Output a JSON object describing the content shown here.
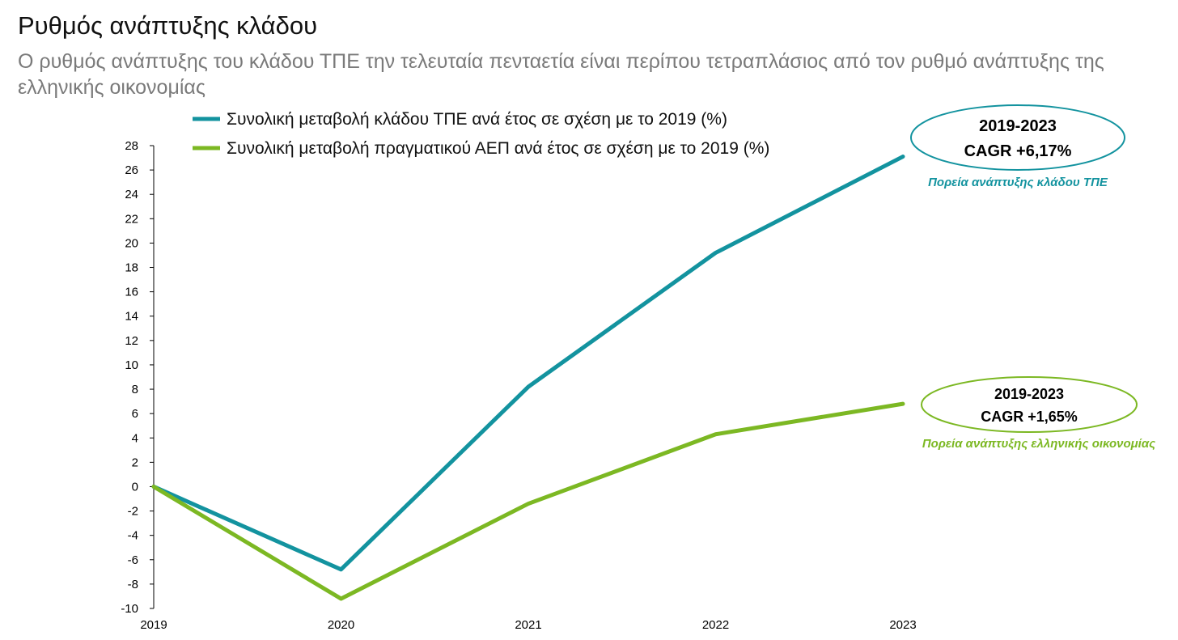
{
  "title": "Ρυθμός ανάπτυξης κλάδου",
  "subtitle": "Ο ρυθμός ανάπτυξης του κλάδου ΤΠΕ την τελευταία πενταετία είναι περίπου τετραπλάσιος από τον ρυθμό ανάπτυξης της ελληνικής οικονομίας",
  "colors": {
    "tpe": "#13939f",
    "gdp": "#7cb823",
    "axis": "#000000"
  },
  "chart_data": {
    "type": "line",
    "x": [
      "2019",
      "2020",
      "2021",
      "2022",
      "2023"
    ],
    "ylim": [
      -10,
      28
    ],
    "yticks": [
      28,
      26,
      24,
      22,
      20,
      18,
      16,
      14,
      12,
      10,
      8,
      6,
      4,
      2,
      0,
      -2,
      -4,
      -6,
      -8,
      -10
    ],
    "grid": false,
    "legend_position": "top",
    "series": [
      {
        "name": "Συνολική μεταβολή κλάδου ΤΠΕ ανά έτος σε σχέση με το 2019 (%)",
        "values": [
          0,
          -6.8,
          8.2,
          19.2,
          27.1
        ]
      },
      {
        "name": "Συνολική μεταβολή πραγματικού ΑΕΠ ανά έτος σε σχέση με το 2019 (%)",
        "values": [
          0,
          -9.2,
          -1.4,
          4.3,
          6.8
        ]
      }
    ],
    "annotations": [
      {
        "series": 0,
        "period": "2019-2023",
        "cagr": "CAGR +6,17%",
        "caption": "Πορεία ανάπτυξης κλάδου ΤΠΕ"
      },
      {
        "series": 1,
        "period": "2019-2023",
        "cagr": "CAGR +1,65%",
        "caption": "Πορεία ανάπτυξης ελληνικής οικονομίας"
      }
    ]
  }
}
